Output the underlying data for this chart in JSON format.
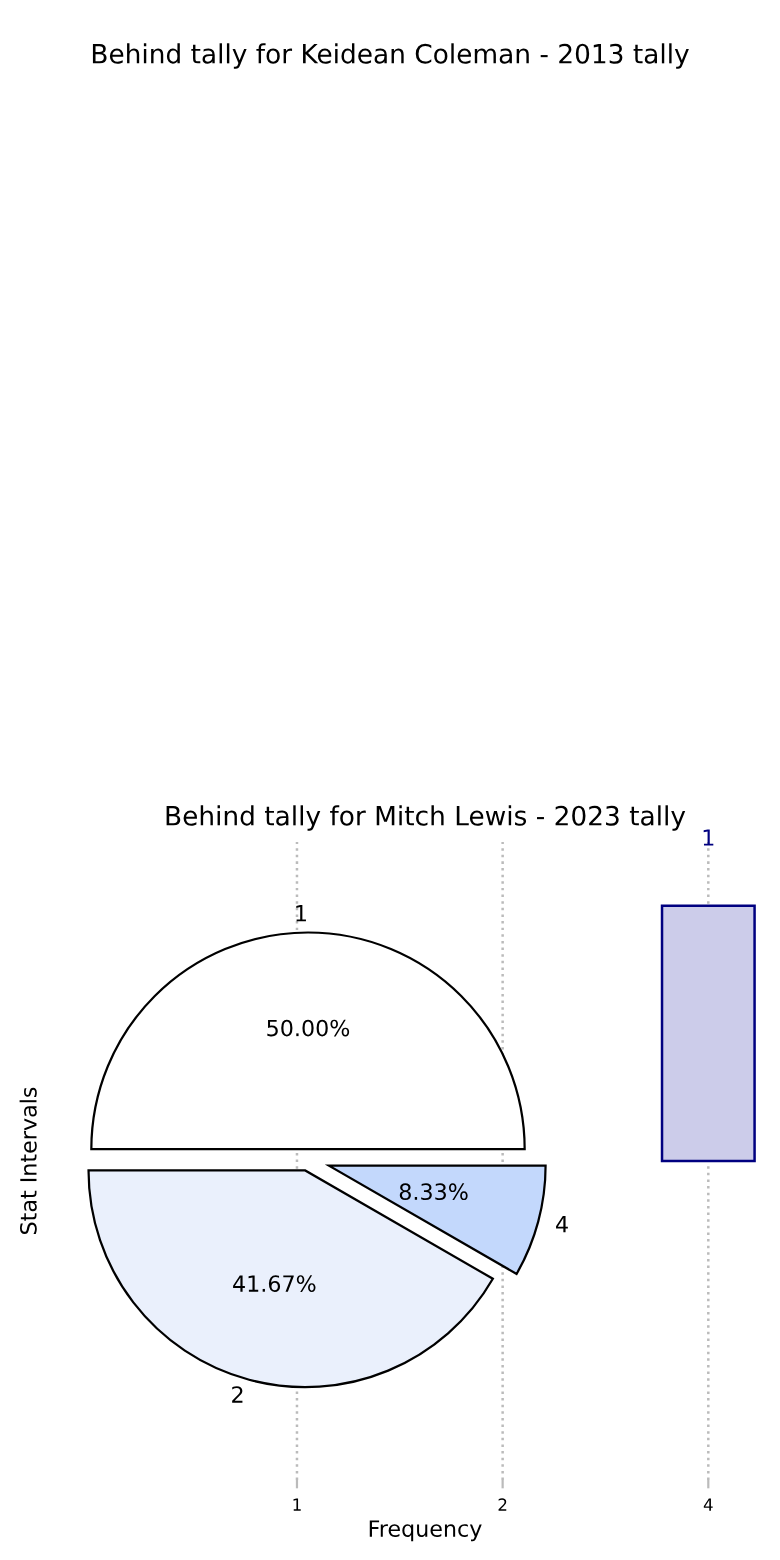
{
  "chart_data": [
    {
      "type": "other",
      "title": "Behind tally for Keidean Coleman - 2013 tally"
    },
    {
      "type": "bar",
      "title": "Behind tally for Mitch Lewis - 2023 tally",
      "xlabel": "Frequency",
      "ylabel": "Stat Intervals",
      "categories": [
        "1",
        "2",
        "4"
      ],
      "ylim": [
        -1.25,
        1.25
      ],
      "grid": "x",
      "series": [
        {
          "type": "bar",
          "color": "#ccccea",
          "values": [
            null,
            null,
            1
          ],
          "value_labels": [
            null,
            null,
            "1"
          ]
        }
      ]
    },
    {
      "type": "pie",
      "categories": [
        "1",
        "2",
        "4"
      ],
      "values": [
        50.0,
        41.67,
        8.33
      ],
      "value_labels": [
        "50.00%",
        "41.67%",
        "8.33%"
      ],
      "colors": [
        "#ffffff",
        "#eaf0fc",
        "#c3d8fc"
      ]
    }
  ]
}
